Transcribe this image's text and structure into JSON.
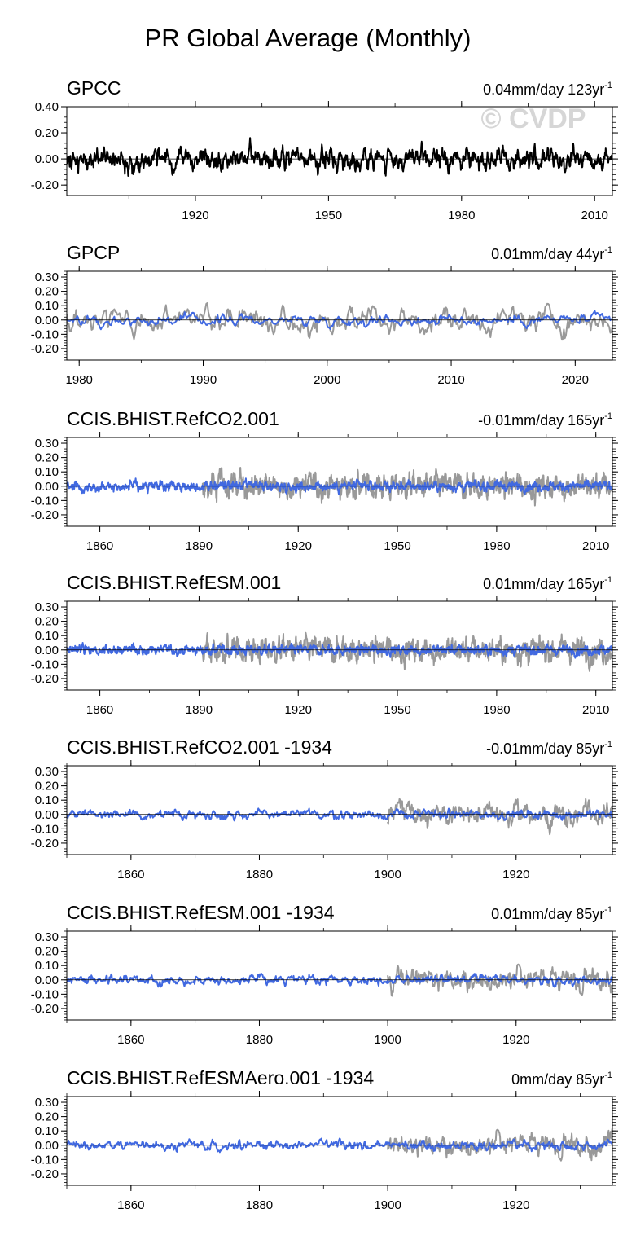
{
  "figure_title": "PR Global Average (Monthly)",
  "watermark": "© CVDP",
  "colors": {
    "observed": "#000000",
    "observed_context": "#999999",
    "model": "#4169e1"
  },
  "chart_data": [
    {
      "type": "line",
      "title": "GPCC",
      "trend": "0.04mm/day 123yr",
      "trend_sup": "-1",
      "xlim": [
        1891,
        2014
      ],
      "ylim": [
        -0.28,
        0.4
      ],
      "yticks": [
        -0.2,
        0.0,
        0.2,
        0.4
      ],
      "yticklabels": [
        "-0.20",
        "0.00",
        "0.20",
        "0.40"
      ],
      "xticks": [
        1920,
        1950,
        1980,
        2010
      ],
      "zero_line": true,
      "series": [
        {
          "role": "observed",
          "amp": 0.075,
          "start": 1891,
          "end": 2014,
          "seed": 11
        }
      ]
    },
    {
      "type": "line",
      "title": "GPCP",
      "trend": "0.01mm/day 44yr",
      "trend_sup": "-1",
      "xlim": [
        1979,
        2023
      ],
      "ylim": [
        -0.28,
        0.34
      ],
      "yticks": [
        -0.2,
        -0.1,
        0.0,
        0.1,
        0.2,
        0.3
      ],
      "yticklabels": [
        "-0.20",
        "-0.10",
        "0.00",
        "0.10",
        "0.20",
        "0.30"
      ],
      "xticks": [
        1980,
        1990,
        2000,
        2010,
        2020
      ],
      "zero_line": true,
      "series": [
        {
          "role": "observed_context",
          "amp": 0.085,
          "start": 1979,
          "end": 2023,
          "seed": 21
        },
        {
          "role": "model",
          "amp": 0.035,
          "start": 1979,
          "end": 2023,
          "seed": 22
        }
      ]
    },
    {
      "type": "line",
      "title": "CCIS.BHIST.RefCO2.001",
      "trend": "-0.01mm/day 165yr",
      "trend_sup": "-1",
      "xlim": [
        1850,
        2015
      ],
      "ylim": [
        -0.28,
        0.34
      ],
      "yticks": [
        -0.2,
        -0.1,
        0.0,
        0.1,
        0.2,
        0.3
      ],
      "yticklabels": [
        "-0.20",
        "-0.10",
        "0.00",
        "0.10",
        "0.20",
        "0.30"
      ],
      "xticks": [
        1860,
        1890,
        1920,
        1950,
        1980,
        2010
      ],
      "zero_line": true,
      "series": [
        {
          "role": "observed_context",
          "amp": 0.08,
          "start": 1891,
          "end": 2015,
          "seed": 31
        },
        {
          "role": "model",
          "amp": 0.03,
          "start": 1850,
          "end": 2015,
          "seed": 32
        }
      ]
    },
    {
      "type": "line",
      "title": "CCIS.BHIST.RefESM.001",
      "trend": "0.01mm/day 165yr",
      "trend_sup": "-1",
      "xlim": [
        1850,
        2015
      ],
      "ylim": [
        -0.28,
        0.34
      ],
      "yticks": [
        -0.2,
        -0.1,
        0.0,
        0.1,
        0.2,
        0.3
      ],
      "yticklabels": [
        "-0.20",
        "-0.10",
        "0.00",
        "0.10",
        "0.20",
        "0.30"
      ],
      "xticks": [
        1860,
        1890,
        1920,
        1950,
        1980,
        2010
      ],
      "zero_line": true,
      "series": [
        {
          "role": "observed_context",
          "amp": 0.08,
          "start": 1891,
          "end": 2015,
          "seed": 41
        },
        {
          "role": "model",
          "amp": 0.03,
          "start": 1850,
          "end": 2015,
          "seed": 42
        }
      ]
    },
    {
      "type": "line",
      "title": "CCIS.BHIST.RefCO2.001 -1934",
      "trend": "-0.01mm/day 85yr",
      "trend_sup": "-1",
      "xlim": [
        1850,
        1935
      ],
      "ylim": [
        -0.28,
        0.34
      ],
      "yticks": [
        -0.2,
        -0.1,
        0.0,
        0.1,
        0.2,
        0.3
      ],
      "yticklabels": [
        "-0.20",
        "-0.10",
        "0.00",
        "0.10",
        "0.20",
        "0.30"
      ],
      "xticks": [
        1860,
        1880,
        1900,
        1920
      ],
      "zero_line": true,
      "series": [
        {
          "role": "observed_context",
          "amp": 0.075,
          "start": 1900,
          "end": 1935,
          "seed": 51
        },
        {
          "role": "model",
          "amp": 0.028,
          "start": 1850,
          "end": 1935,
          "seed": 52
        }
      ]
    },
    {
      "type": "line",
      "title": "CCIS.BHIST.RefESM.001 -1934",
      "trend": "0.01mm/day 85yr",
      "trend_sup": "-1",
      "xlim": [
        1850,
        1935
      ],
      "ylim": [
        -0.28,
        0.34
      ],
      "yticks": [
        -0.2,
        -0.1,
        0.0,
        0.1,
        0.2,
        0.3
      ],
      "yticklabels": [
        "-0.20",
        "-0.10",
        "0.00",
        "0.10",
        "0.20",
        "0.30"
      ],
      "xticks": [
        1860,
        1880,
        1900,
        1920
      ],
      "zero_line": true,
      "series": [
        {
          "role": "observed_context",
          "amp": 0.075,
          "start": 1900,
          "end": 1935,
          "seed": 61
        },
        {
          "role": "model",
          "amp": 0.028,
          "start": 1850,
          "end": 1935,
          "seed": 62
        }
      ]
    },
    {
      "type": "line",
      "title": "CCIS.BHIST.RefESMAero.001 -1934",
      "trend": "0mm/day 85yr",
      "trend_sup": "-1",
      "xlim": [
        1850,
        1935
      ],
      "ylim": [
        -0.28,
        0.34
      ],
      "yticks": [
        -0.2,
        -0.1,
        0.0,
        0.1,
        0.2,
        0.3
      ],
      "yticklabels": [
        "-0.20",
        "-0.10",
        "0.00",
        "0.10",
        "0.20",
        "0.30"
      ],
      "xticks": [
        1860,
        1880,
        1900,
        1920
      ],
      "zero_line": true,
      "series": [
        {
          "role": "observed_context",
          "amp": 0.075,
          "start": 1900,
          "end": 1935,
          "seed": 71
        },
        {
          "role": "model",
          "amp": 0.028,
          "start": 1850,
          "end": 1935,
          "seed": 72
        }
      ]
    }
  ]
}
